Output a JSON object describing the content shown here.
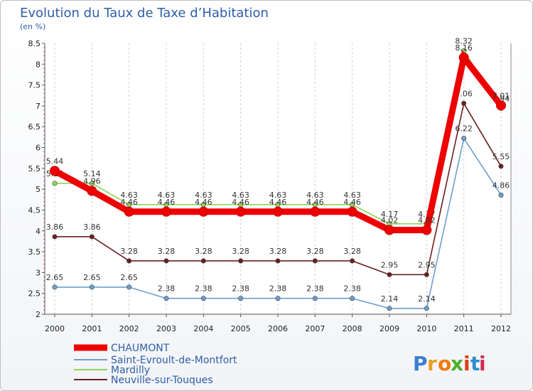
{
  "chart_data": {
    "type": "line",
    "title": "Evolution du Taux de Taxe d’Habitation",
    "subtitle": "(en %)",
    "categories": [
      "2000",
      "2001",
      "2002",
      "2003",
      "2004",
      "2005",
      "2006",
      "2007",
      "2008",
      "2009",
      "2010",
      "2011",
      "2012"
    ],
    "ylim": [
      2,
      8.5
    ],
    "yticks": [
      "2",
      "2.5",
      "3",
      "3.5",
      "4",
      "4.5",
      "5",
      "5.5",
      "6",
      "6.5",
      "7",
      "7.5",
      "8",
      "8.5"
    ],
    "grid": "vertical dashed",
    "legend_position": "bottom-left",
    "series": [
      {
        "name": "CHAUMONT",
        "color": "#ee0000",
        "values": [
          5.44,
          4.96,
          4.46,
          4.46,
          4.46,
          4.46,
          4.46,
          4.46,
          4.46,
          4.02,
          4.02,
          8.16,
          7.01
        ],
        "labels": [
          "5.44",
          "4.96",
          "4.46",
          "4.46",
          "4.46",
          "4.46",
          "4.46",
          "4.46",
          "4.46",
          "4.02",
          "4.02",
          "8.16",
          "7.01"
        ]
      },
      {
        "name": "Saint-Evroult-de-Montfort",
        "color": "#6d9fcc",
        "values": [
          2.65,
          2.65,
          2.65,
          2.38,
          2.38,
          2.38,
          2.38,
          2.38,
          2.38,
          2.14,
          2.14,
          6.22,
          4.86
        ],
        "labels": [
          "2.65",
          "2.65",
          "2.65",
          "2.38",
          "2.38",
          "2.38",
          "2.38",
          "2.38",
          "2.38",
          "2.14",
          "2.14",
          "6.22",
          "4.86"
        ]
      },
      {
        "name": "Mardilly",
        "color": "#8fd45a",
        "values": [
          5.14,
          5.14,
          4.63,
          4.63,
          4.63,
          4.63,
          4.63,
          4.63,
          4.63,
          4.17,
          4.17,
          8.32,
          6.94
        ],
        "labels": [
          "5.14",
          "5.14",
          "4.63",
          "4.63",
          "4.63",
          "4.63",
          "4.63",
          "4.63",
          "4.63",
          "4.17",
          "4.17",
          "8.32",
          "6.94"
        ]
      },
      {
        "name": "Neuville-sur-Touques",
        "color": "#6b1f1f",
        "values": [
          3.86,
          3.86,
          3.28,
          3.28,
          3.28,
          3.28,
          3.28,
          3.28,
          3.28,
          2.95,
          2.95,
          7.06,
          5.55
        ],
        "labels": [
          "3.86",
          "3.86",
          "3.28",
          "3.28",
          "3.28",
          "3.28",
          "3.28",
          "3.28",
          "3.28",
          "2.95",
          "2.95",
          "7.06",
          "5.55"
        ]
      }
    ]
  },
  "logo": {
    "text": "Proxiti",
    "letter_colors": [
      "#3a7fd0",
      "#e8a020",
      "#f07a10",
      "#4caf2a",
      "#e04010",
      "#2a8fd0",
      "#d02a50"
    ]
  }
}
